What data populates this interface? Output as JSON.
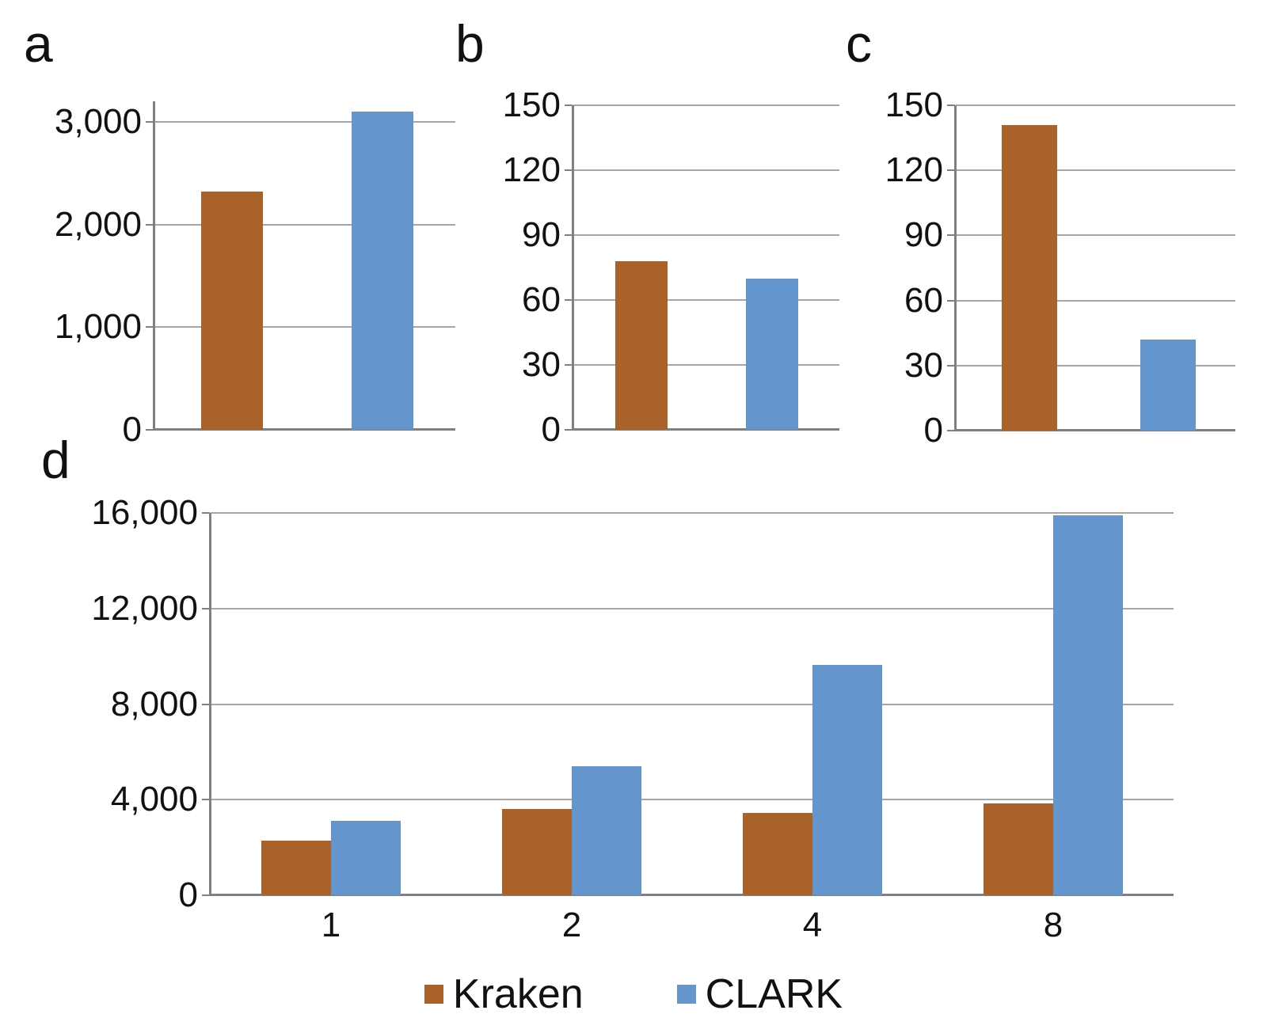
{
  "figure": {
    "background": "#ffffff",
    "colors": {
      "kraken": "#a9632a",
      "clark": "#6495cd",
      "gridline": "#a6a6a6",
      "axis": "#808080"
    },
    "legend": [
      {
        "label": "Kraken",
        "color_key": "kraken"
      },
      {
        "label": "CLARK",
        "color_key": "clark"
      }
    ]
  },
  "chart_data": [
    {
      "id": "a",
      "panel_label": "a",
      "type": "bar",
      "categories": [
        ""
      ],
      "series": [
        {
          "name": "Kraken",
          "color_key": "kraken",
          "values": [
            2320
          ]
        },
        {
          "name": "CLARK",
          "color_key": "clark",
          "values": [
            3100
          ]
        }
      ],
      "ylim": [
        0,
        3200
      ],
      "yticks": [
        {
          "value": 0,
          "label": "0"
        },
        {
          "value": 1000,
          "label": "1,000"
        },
        {
          "value": 2000,
          "label": "2,000"
        },
        {
          "value": 3000,
          "label": "3,000"
        }
      ],
      "grid": true,
      "legend_position": "none",
      "xticklabels": []
    },
    {
      "id": "b",
      "panel_label": "b",
      "type": "bar",
      "categories": [
        ""
      ],
      "series": [
        {
          "name": "Kraken",
          "color_key": "kraken",
          "values": [
            78
          ]
        },
        {
          "name": "CLARK",
          "color_key": "clark",
          "values": [
            70
          ]
        }
      ],
      "ylim": [
        0,
        150
      ],
      "yticks": [
        {
          "value": 0,
          "label": "0"
        },
        {
          "value": 30,
          "label": "30"
        },
        {
          "value": 60,
          "label": "60"
        },
        {
          "value": 90,
          "label": "90"
        },
        {
          "value": 120,
          "label": "120"
        },
        {
          "value": 150,
          "label": "150"
        }
      ],
      "grid": true,
      "legend_position": "none",
      "xticklabels": []
    },
    {
      "id": "c",
      "panel_label": "c",
      "type": "bar",
      "categories": [
        ""
      ],
      "series": [
        {
          "name": "Kraken",
          "color_key": "kraken",
          "values": [
            141
          ]
        },
        {
          "name": "CLARK",
          "color_key": "clark",
          "values": [
            42
          ]
        }
      ],
      "ylim": [
        0,
        150
      ],
      "yticks": [
        {
          "value": 0,
          "label": "0"
        },
        {
          "value": 30,
          "label": "30"
        },
        {
          "value": 60,
          "label": "60"
        },
        {
          "value": 90,
          "label": "90"
        },
        {
          "value": 120,
          "label": "120"
        },
        {
          "value": 150,
          "label": "150"
        }
      ],
      "grid": true,
      "legend_position": "none",
      "xticklabels": []
    },
    {
      "id": "d",
      "panel_label": "d",
      "type": "bar",
      "categories": [
        "1",
        "2",
        "4",
        "8"
      ],
      "series": [
        {
          "name": "Kraken",
          "color_key": "kraken",
          "values": [
            2300,
            3600,
            3450,
            3850
          ]
        },
        {
          "name": "CLARK",
          "color_key": "clark",
          "values": [
            3100,
            5400,
            9650,
            15900
          ]
        }
      ],
      "ylim": [
        0,
        16000
      ],
      "yticks": [
        {
          "value": 0,
          "label": "0"
        },
        {
          "value": 4000,
          "label": "4,000"
        },
        {
          "value": 8000,
          "label": "8,000"
        },
        {
          "value": 12000,
          "label": "12,000"
        },
        {
          "value": 16000,
          "label": "16,000"
        }
      ],
      "grid": true,
      "legend_position": "bottom",
      "xticklabels": [
        "1",
        "2",
        "4",
        "8"
      ]
    }
  ]
}
